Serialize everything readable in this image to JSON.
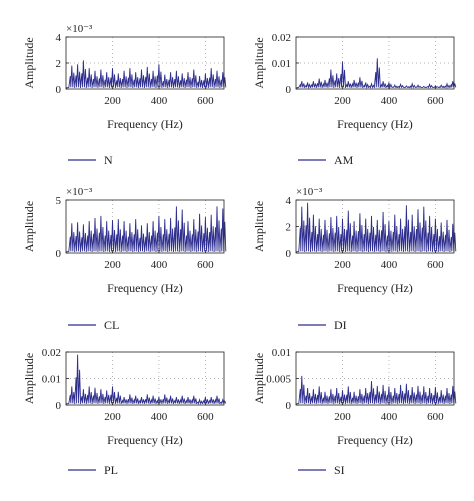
{
  "colors": {
    "line": "#2e2e8f",
    "axis": "#222222",
    "grid": "#9a9a9a"
  },
  "chart_data": [
    {
      "type": "line",
      "legend": "N",
      "ylabel": "Amplitude",
      "xlabel": "Frequency (Hz)",
      "ylim": [
        0,
        4
      ],
      "yticks": [
        "0",
        "2",
        "4"
      ],
      "exponent": "×10⁻³",
      "xlim": [
        0,
        680
      ],
      "xticks": [
        "200",
        "400",
        "600"
      ],
      "grid": true,
      "series": [
        {
          "x": [
            25,
            50,
            75,
            100,
            125,
            150,
            175,
            200,
            225,
            250,
            275,
            300,
            325,
            350,
            375,
            400,
            425,
            450,
            475,
            500,
            525,
            550,
            575,
            600,
            625,
            650,
            675
          ],
          "values": [
            1.8,
            1.9,
            2.2,
            1.6,
            1.4,
            1.5,
            1.3,
            1.6,
            1.2,
            1.4,
            1.6,
            1.3,
            1.5,
            1.7,
            1.4,
            1.9,
            1.1,
            1.3,
            1.4,
            1.2,
            1.3,
            1.5,
            1.0,
            1.2,
            1.6,
            1.4,
            1.3
          ]
        }
      ]
    },
    {
      "type": "line",
      "legend": "AM",
      "ylabel": "",
      "xlabel": "Frequency (Hz)",
      "ylim": [
        0,
        0.02
      ],
      "yticks": [
        "0",
        "0.01",
        "0.02"
      ],
      "exponent": "",
      "xlim": [
        0,
        680
      ],
      "xticks": [
        "200",
        "400",
        "600"
      ],
      "grid": true,
      "series": [
        {
          "x": [
            25,
            50,
            75,
            100,
            125,
            150,
            175,
            200,
            225,
            250,
            275,
            300,
            325,
            350,
            375,
            400,
            425,
            450,
            475,
            500,
            525,
            550,
            575,
            600,
            625,
            650,
            675
          ],
          "values": [
            0.003,
            0.0025,
            0.003,
            0.004,
            0.0035,
            0.0075,
            0.006,
            0.0105,
            0.003,
            0.0035,
            0.0045,
            0.0025,
            0.002,
            0.0118,
            0.003,
            0.0025,
            0.0015,
            0.0018,
            0.0012,
            0.002,
            0.0015,
            0.001,
            0.0018,
            0.0012,
            0.0015,
            0.002,
            0.003
          ]
        }
      ]
    },
    {
      "type": "line",
      "legend": "CL",
      "ylabel": "Amplitude",
      "xlabel": "Frequency (Hz)",
      "ylim": [
        0,
        5
      ],
      "yticks": [
        "0",
        "5"
      ],
      "exponent": "×10⁻³",
      "xlim": [
        0,
        680
      ],
      "xticks": [
        "200",
        "400",
        "600"
      ],
      "grid": true,
      "series": [
        {
          "x": [
            25,
            50,
            75,
            100,
            125,
            150,
            175,
            200,
            225,
            250,
            275,
            300,
            325,
            350,
            375,
            400,
            425,
            450,
            475,
            500,
            525,
            550,
            575,
            600,
            625,
            650,
            675
          ],
          "values": [
            2.8,
            2.9,
            2.7,
            3.0,
            3.3,
            3.5,
            3.0,
            3.1,
            3.2,
            3.0,
            2.8,
            3.2,
            2.6,
            2.8,
            3.0,
            3.5,
            3.2,
            3.3,
            4.4,
            4.1,
            3.0,
            3.2,
            3.7,
            3.4,
            3.6,
            4.4,
            4.2
          ]
        }
      ]
    },
    {
      "type": "line",
      "legend": "DI",
      "ylabel": "",
      "xlabel": "Frequency (Hz)",
      "ylim": [
        0,
        4
      ],
      "yticks": [
        "0",
        "2",
        "4"
      ],
      "exponent": "×10⁻³",
      "xlim": [
        0,
        680
      ],
      "xticks": [
        "200",
        "400",
        "600"
      ],
      "grid": true,
      "series": [
        {
          "x": [
            25,
            50,
            75,
            100,
            125,
            150,
            175,
            200,
            225,
            250,
            275,
            300,
            325,
            350,
            375,
            400,
            425,
            450,
            475,
            500,
            525,
            550,
            575,
            600,
            625,
            650,
            675
          ],
          "values": [
            3.5,
            3.8,
            2.9,
            2.6,
            2.5,
            2.7,
            2.8,
            2.6,
            3.2,
            2.4,
            3.0,
            2.6,
            2.8,
            2.5,
            3.1,
            2.4,
            2.9,
            2.6,
            3.6,
            2.9,
            3.3,
            3.5,
            2.8,
            2.6,
            2.3,
            2.5,
            2.2
          ]
        }
      ]
    },
    {
      "type": "line",
      "legend": "PL",
      "ylabel": "Amplitude",
      "xlabel": "Frequency (Hz)",
      "ylim": [
        0,
        0.02
      ],
      "yticks": [
        "0",
        "0.01",
        "0.02"
      ],
      "exponent": "",
      "xlim": [
        0,
        680
      ],
      "xticks": [
        "200",
        "400",
        "600"
      ],
      "grid": true,
      "series": [
        {
          "x": [
            25,
            50,
            75,
            100,
            125,
            150,
            175,
            200,
            225,
            250,
            275,
            300,
            325,
            350,
            375,
            400,
            425,
            450,
            475,
            500,
            525,
            550,
            575,
            600,
            625,
            650,
            675
          ],
          "values": [
            0.007,
            0.019,
            0.006,
            0.007,
            0.0065,
            0.006,
            0.0055,
            0.007,
            0.005,
            0.003,
            0.004,
            0.0035,
            0.003,
            0.004,
            0.0035,
            0.003,
            0.004,
            0.0035,
            0.003,
            0.0035,
            0.003,
            0.0035,
            0.002,
            0.003,
            0.003,
            0.0035,
            0.002
          ]
        }
      ]
    },
    {
      "type": "line",
      "legend": "SI",
      "ylabel": "",
      "xlabel": "Frequency (Hz)",
      "ylim": [
        0,
        0.01
      ],
      "yticks": [
        "0",
        "0.005",
        "0.01"
      ],
      "exponent": "",
      "xlim": [
        0,
        680
      ],
      "xticks": [
        "200",
        "400",
        "600"
      ],
      "grid": true,
      "series": [
        {
          "x": [
            25,
            50,
            75,
            100,
            125,
            150,
            175,
            200,
            225,
            250,
            275,
            300,
            325,
            350,
            375,
            400,
            425,
            450,
            475,
            500,
            525,
            550,
            575,
            600,
            625,
            650,
            675
          ],
          "values": [
            0.0055,
            0.0032,
            0.003,
            0.0035,
            0.0025,
            0.003,
            0.0032,
            0.0028,
            0.0035,
            0.0025,
            0.003,
            0.0032,
            0.0045,
            0.0036,
            0.0038,
            0.0035,
            0.0032,
            0.0038,
            0.004,
            0.0034,
            0.0036,
            0.0035,
            0.0032,
            0.0034,
            0.0028,
            0.0032,
            0.0036
          ]
        }
      ]
    }
  ]
}
